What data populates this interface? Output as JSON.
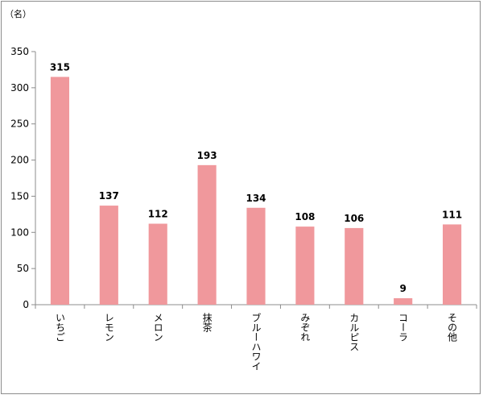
{
  "chart_data": {
    "type": "bar",
    "title": "",
    "xlabel": "",
    "ylabel": "",
    "unit_label": "（名）",
    "categories": [
      "いちご",
      "レモン",
      "メロン",
      "抹茶",
      "ブルーハワイ",
      "みぞれ",
      "カルピス",
      "コーラ",
      "その他"
    ],
    "values": [
      315,
      137,
      112,
      193,
      134,
      108,
      106,
      9,
      111
    ],
    "ylim": [
      0,
      350
    ],
    "yticks": [
      0,
      50,
      100,
      150,
      200,
      250,
      300,
      350
    ],
    "grid": false,
    "legend": "none",
    "bar_color": "#f0989c",
    "axis_color": "#8c8c8c",
    "data_labels": true
  }
}
